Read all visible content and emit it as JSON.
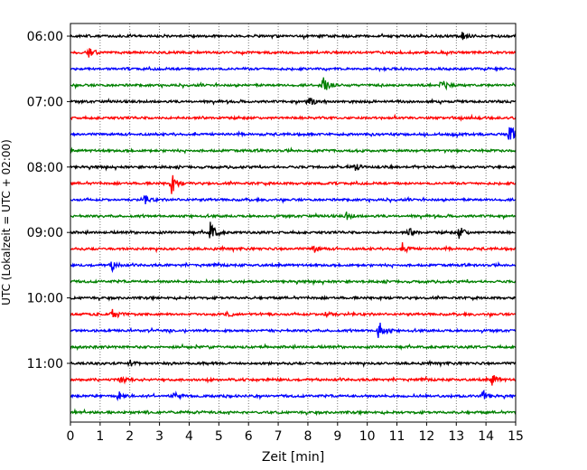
{
  "chart_data": {
    "type": "line",
    "subtype": "helicorder",
    "xlabel": "Zeit  [min]",
    "ylabel": "UTC (Lokalzeit = UTC + 02:00)",
    "xlim": [
      0,
      15
    ],
    "x_ticks": [
      0,
      1,
      2,
      3,
      4,
      5,
      6,
      7,
      8,
      9,
      10,
      11,
      12,
      13,
      14,
      15
    ],
    "x_tick_labels": [
      "0",
      "1",
      "2",
      "3",
      "4",
      "5",
      "6",
      "7",
      "8",
      "9",
      "10",
      "11",
      "12",
      "13",
      "14",
      "15"
    ],
    "y_tick_labels": [
      "06:00",
      "07:00",
      "08:00",
      "09:00",
      "10:00",
      "11:00"
    ],
    "y_tick_trace_index": [
      0,
      4,
      8,
      12,
      16,
      20
    ],
    "vertical_grid": true,
    "trace_interval_min": 15,
    "color_cycle": [
      "#000000",
      "#ff0000",
      "#0000ff",
      "#008000"
    ],
    "traces": [
      {
        "start": "06:00",
        "events": [
          [
            13.2,
            5
          ]
        ]
      },
      {
        "start": "06:15",
        "events": [
          [
            0.6,
            6
          ]
        ]
      },
      {
        "start": "06:30",
        "events": []
      },
      {
        "start": "06:45",
        "events": [
          [
            8.5,
            11
          ],
          [
            12.5,
            6
          ]
        ]
      },
      {
        "start": "07:00",
        "events": [
          [
            8.0,
            7
          ]
        ]
      },
      {
        "start": "07:15",
        "events": []
      },
      {
        "start": "07:30",
        "events": [
          [
            14.8,
            12
          ]
        ]
      },
      {
        "start": "07:45",
        "events": []
      },
      {
        "start": "08:00",
        "events": [
          [
            9.6,
            4
          ]
        ]
      },
      {
        "start": "08:15",
        "events": [
          [
            3.4,
            12
          ]
        ]
      },
      {
        "start": "08:30",
        "events": [
          [
            2.5,
            5
          ]
        ]
      },
      {
        "start": "08:45",
        "events": [
          [
            9.3,
            4
          ]
        ]
      },
      {
        "start": "09:00",
        "events": [
          [
            4.7,
            14
          ],
          [
            11.4,
            5
          ],
          [
            13.1,
            7
          ]
        ]
      },
      {
        "start": "09:15",
        "events": [
          [
            11.2,
            6
          ],
          [
            8.2,
            4
          ]
        ]
      },
      {
        "start": "09:30",
        "events": [
          [
            1.4,
            6
          ]
        ]
      },
      {
        "start": "09:45",
        "events": []
      },
      {
        "start": "10:00",
        "events": []
      },
      {
        "start": "10:15",
        "events": [
          [
            1.4,
            5
          ],
          [
            5.3,
            4
          ],
          [
            8.6,
            4
          ]
        ]
      },
      {
        "start": "10:30",
        "events": [
          [
            10.4,
            12
          ]
        ]
      },
      {
        "start": "10:45",
        "events": []
      },
      {
        "start": "11:00",
        "events": [
          [
            2.0,
            4
          ]
        ]
      },
      {
        "start": "11:15",
        "events": [
          [
            14.2,
            7
          ],
          [
            1.7,
            4
          ]
        ]
      },
      {
        "start": "11:30",
        "events": [
          [
            1.6,
            6
          ],
          [
            3.5,
            5
          ],
          [
            13.9,
            6
          ]
        ]
      },
      {
        "start": "11:45",
        "events": []
      }
    ]
  }
}
